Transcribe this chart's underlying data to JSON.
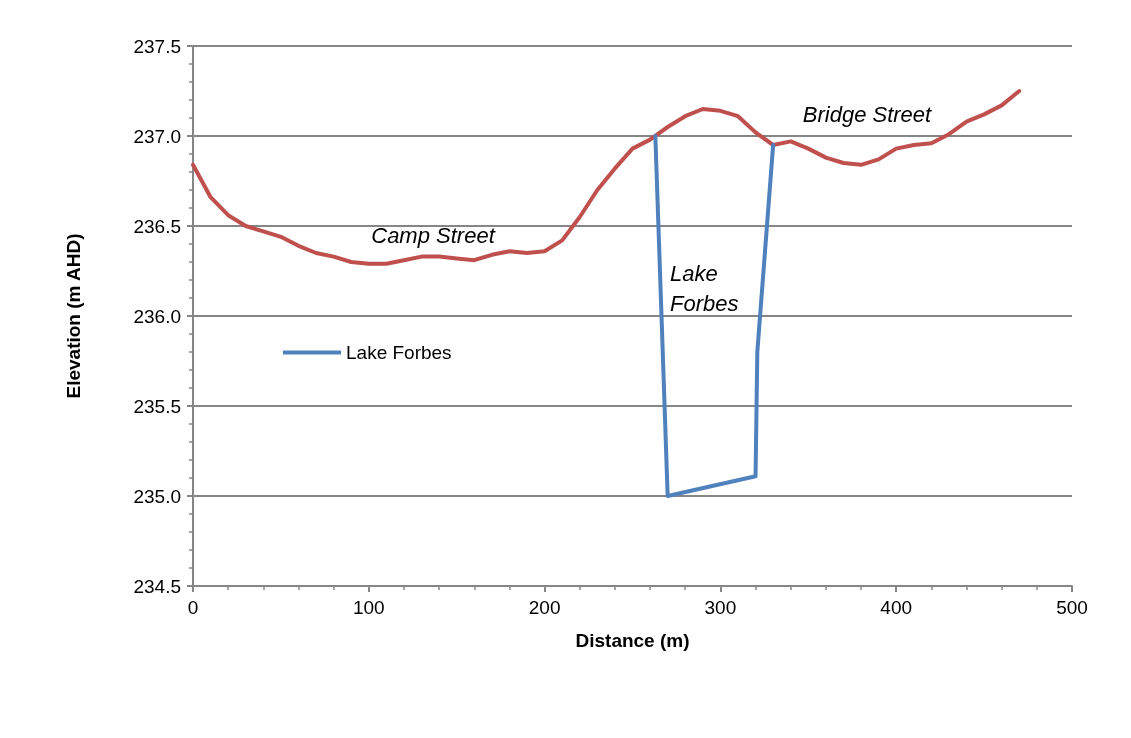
{
  "chart_data": {
    "type": "line",
    "xlabel": "Distance (m)",
    "ylabel": "Elevation (m AHD)",
    "xlim": [
      0,
      500
    ],
    "xticks": [
      0,
      100,
      200,
      300,
      400,
      500
    ],
    "ylim": [
      234.5,
      237.5
    ],
    "yticks": [
      234.5,
      {
        "value": 235,
        "label": "235.0"
      },
      235.5,
      {
        "value": 236,
        "label": "236.0"
      },
      236.5,
      {
        "value": 237,
        "label": "237.0"
      },
      237.5
    ],
    "grid": "y",
    "legend": "left",
    "marker": "none",
    "line_style": "solid",
    "series": [
      {
        "color": "#c0504d",
        "x": [
          0,
          10,
          20,
          30,
          40,
          50,
          60,
          70,
          80,
          90,
          100,
          110,
          120,
          130,
          140,
          150,
          160,
          170,
          180,
          190,
          200,
          210,
          220,
          230,
          240,
          250,
          260,
          270,
          280,
          290,
          300,
          310,
          320,
          330,
          340,
          350,
          360,
          370,
          380,
          390,
          400,
          410,
          420,
          430,
          440,
          450,
          460,
          470
        ],
        "values": [
          236.84,
          236.66,
          236.56,
          236.5,
          236.47,
          236.44,
          236.39,
          236.35,
          236.33,
          236.3,
          236.29,
          236.29,
          236.31,
          236.33,
          236.33,
          236.32,
          236.31,
          236.34,
          236.36,
          236.35,
          236.36,
          236.42,
          236.55,
          236.7,
          236.82,
          236.93,
          236.98,
          237.05,
          237.11,
          237.15,
          237.14,
          237.11,
          237.02,
          236.95,
          236.97,
          236.93,
          236.88,
          236.85,
          236.84,
          236.87,
          236.93,
          236.95,
          236.96,
          237.01,
          237.08,
          237.12,
          237.17,
          237.25
        ]
      },
      {
        "name": "Lake Forbes",
        "color": "#4f81bd",
        "x": [
          263,
          270,
          320,
          321,
          330
        ],
        "values": [
          237.0,
          235.0,
          235.11,
          235.8,
          236.95
        ]
      }
    ],
    "annotations": [
      "Camp Street",
      "Lake\nForbes",
      "Bridge Street"
    ]
  }
}
